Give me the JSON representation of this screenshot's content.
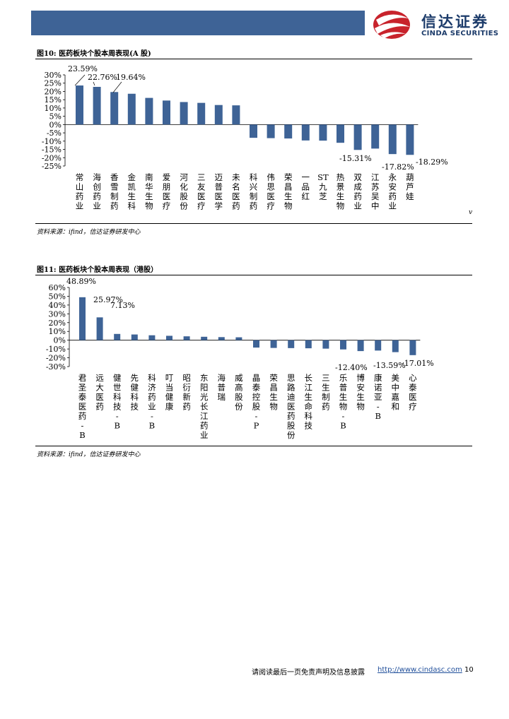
{
  "header": {
    "logo_cn": "信达证券",
    "logo_en": "CINDA SECURITIES",
    "brand_color": "#3e6396",
    "logo_red": "#c8232c"
  },
  "figure10": {
    "title": "图10: 医药板块个股本周表现(A 股)",
    "source": "资料来源：ifind，信达证券研发中心",
    "stray_mark": "v"
  },
  "figure11": {
    "title": "图11: 医药板块个股本周表现（港股）",
    "source": "资料来源：ifind，信达证券研发中心"
  },
  "chart_data": [
    {
      "type": "bar",
      "title": "图10: 医药板块个股本周表现(A 股)",
      "categories": [
        "常山药业",
        "海创药业",
        "香雪制药",
        "金凯生科",
        "南华生物",
        "爱朋医疗",
        "河化股份",
        "三友医疗",
        "迈普医学",
        "未名医药",
        "科兴制药",
        "伟思医疗",
        "荣昌生物",
        "一品红",
        "ST九芝",
        "热景生物",
        "双成药业",
        "江苏吴中",
        "永安药业",
        "葫芦娃"
      ],
      "values": [
        23.59,
        22.76,
        19.64,
        18.6,
        16.1,
        14.5,
        13.6,
        13.1,
        11.8,
        11.6,
        -8.0,
        -8.2,
        -8.4,
        -9.6,
        -9.7,
        -11.0,
        -15.31,
        -14.5,
        -17.82,
        -18.29
      ],
      "data_labels": [
        "23.59%",
        "22.76%",
        "19.64%",
        "",
        "",
        "",
        "",
        "",
        "",
        "",
        "",
        "",
        "",
        "",
        "",
        "",
        "-15.31%",
        "",
        "-17.82%",
        "-18.29%"
      ],
      "yticks": [
        "30%",
        "25%",
        "20%",
        "15%",
        "10%",
        "5%",
        "0%",
        "-5%",
        "-10%",
        "-15%",
        "-20%",
        "-25%"
      ],
      "ylim": [
        -25,
        30
      ],
      "bar_color": "#3e6396"
    },
    {
      "type": "bar",
      "title": "图11: 医药板块个股本周表现（港股）",
      "categories": [
        "君圣泰医药-B",
        "远大医药",
        "健世科技-B",
        "先健科技",
        "科济药业-B",
        "叮当健康",
        "昭衍新药",
        "东阳光长江药业",
        "海普瑞",
        "威高股份",
        "晶泰控股-P",
        "荣昌生物",
        "思路迪医药股份",
        "长江生命科技",
        "三生制药",
        "乐普生物-B",
        "博安生物",
        "康诺亚-B",
        "美中嘉和",
        "心泰医疗"
      ],
      "values": [
        48.89,
        25.97,
        7.13,
        6.5,
        5.6,
        5.0,
        4.4,
        3.9,
        3.5,
        3.3,
        -8.4,
        -8.8,
        -9.0,
        -9.2,
        -9.6,
        -10.5,
        -12.4,
        -11.8,
        -13.59,
        -17.01
      ],
      "data_labels": [
        "48.89%",
        "25.97%",
        "7.13%",
        "",
        "",
        "",
        "",
        "",
        "",
        "",
        "",
        "",
        "",
        "",
        "",
        "",
        "-12.40%",
        "",
        "-13.59%",
        "-17.01%"
      ],
      "yticks": [
        "60%",
        "50%",
        "40%",
        "30%",
        "20%",
        "10%",
        "0%",
        "-10%",
        "-20%",
        "-30%"
      ],
      "ylim": [
        -30,
        60
      ],
      "bar_color": "#3e6396"
    }
  ],
  "footer": {
    "note": "请阅读最后一页免责声明及信息披露",
    "link": "http://www.cindasc.com",
    "page": "10"
  }
}
